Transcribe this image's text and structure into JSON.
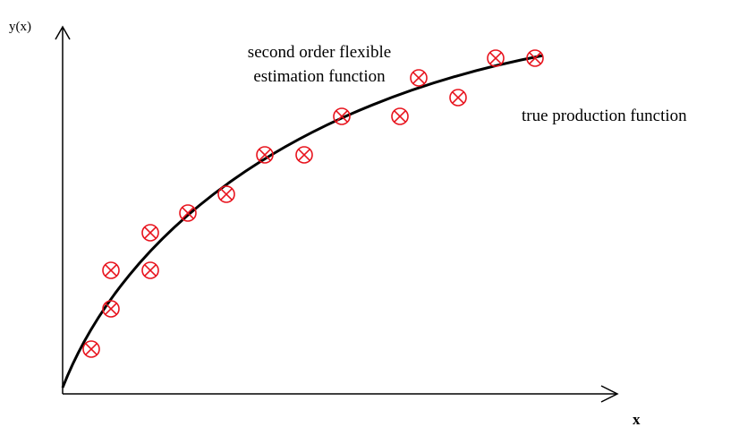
{
  "axes": {
    "y_label": "y(x)",
    "x_label": "x"
  },
  "labels": {
    "estimation": [
      "second order flexible",
      "estimation function"
    ],
    "true_function": "true production function"
  }
}
